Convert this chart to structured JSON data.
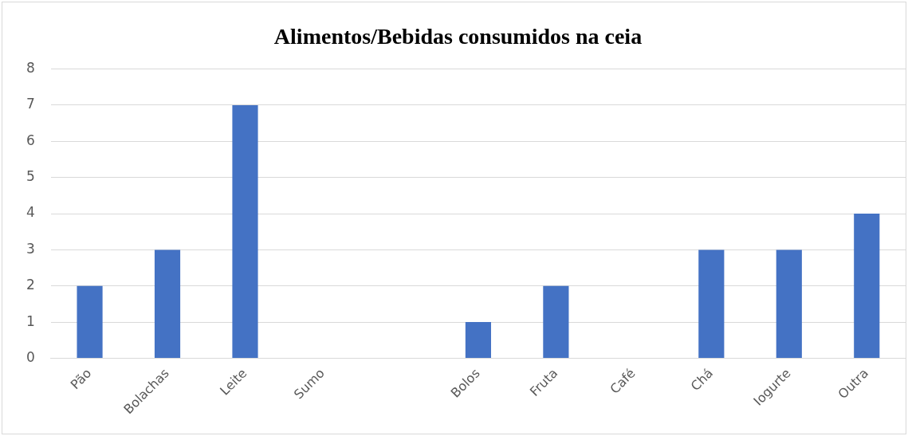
{
  "chart_data": {
    "type": "bar",
    "title": "Alimentos/Bebidas consumidos na ceia",
    "categories": [
      "Pão",
      "Bolachas",
      "Leite",
      "Sumo",
      null,
      "Bolos",
      "Fruta",
      "Café",
      "Chá",
      "Iogurte",
      "Outra"
    ],
    "values": [
      2,
      3,
      7,
      0,
      0,
      1,
      2,
      0,
      3,
      3,
      4
    ],
    "color": "#4472c4",
    "ylim": [
      0,
      8
    ],
    "yticks": [
      0,
      1,
      2,
      3,
      4,
      5,
      6,
      7,
      8
    ],
    "grid": "y",
    "legend": false
  }
}
